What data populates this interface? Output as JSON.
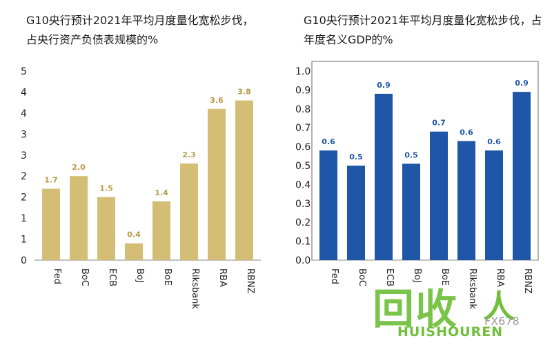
{
  "chart_data": [
    {
      "type": "bar",
      "title": "G10央行预计2021年平均月度量化宽松步伐，占央行资产负债表规模的%",
      "categories": [
        "Fed",
        "BoC",
        "ECB",
        "BoJ",
        "BoE",
        "Riksbank",
        "RBA",
        "RBNZ"
      ],
      "values": [
        1.7,
        2.0,
        1.5,
        0.4,
        1.4,
        2.3,
        3.6,
        3.8
      ],
      "data_labels": [
        "1.7",
        "2.0",
        "1.5",
        "0.4",
        "1.4",
        "2.3",
        "3.6",
        "3.8"
      ],
      "ytick_labels": [
        "0",
        "1",
        "1",
        "2",
        "2",
        "3",
        "3",
        "4",
        "4",
        "5"
      ],
      "ylim": [
        0,
        4.5
      ],
      "xlabel": "",
      "ylabel": "",
      "grid": false,
      "bar_color": "#d4bd74",
      "label_color": "#b89b45"
    },
    {
      "type": "bar",
      "title": "G10央行预计2021年平均月度量化宽松步伐，占年度名义GDP的%",
      "categories": [
        "Fed",
        "BoC",
        "ECB",
        "BoJ",
        "BoE",
        "Riksbank",
        "RBA",
        "RBNZ"
      ],
      "values": [
        0.58,
        0.5,
        0.88,
        0.51,
        0.68,
        0.63,
        0.58,
        0.89
      ],
      "data_labels": [
        "0.6",
        "0.5",
        "0.9",
        "0.5",
        "0.7",
        "0.6",
        "0.6",
        "0.9"
      ],
      "ytick_labels": [
        "0.0",
        "0.1",
        "0.2",
        "0.3",
        "0.4",
        "0.5",
        "0.6",
        "0.7",
        "0.8",
        "0.9",
        "1.0"
      ],
      "ylim": [
        0,
        1.0
      ],
      "xlabel": "",
      "ylabel": "",
      "grid": false,
      "bar_color": "#1f56a8",
      "label_color": "#1f56a8"
    }
  ],
  "watermark": {
    "big": "回收",
    "small": "HUISHOUREN",
    "code": "FX678",
    "color": "#6fbf3a"
  }
}
